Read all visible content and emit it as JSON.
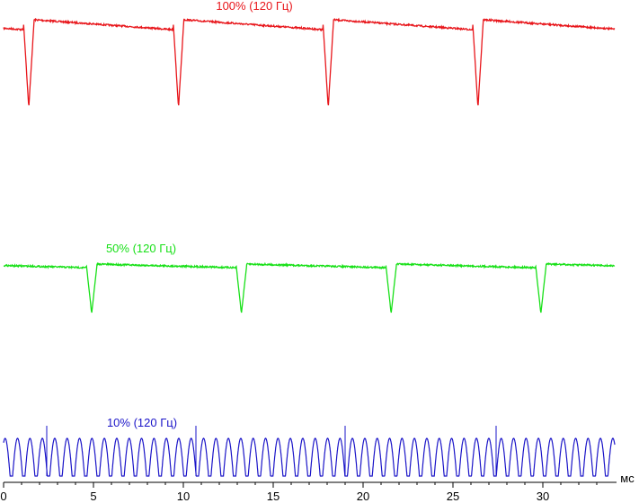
{
  "chart_data": {
    "type": "line",
    "title": "",
    "xlabel": "мс",
    "ylabel": "",
    "xlim": [
      0,
      34
    ],
    "x_ticks": [
      "0",
      "5",
      "10",
      "15",
      "20",
      "25",
      "30"
    ],
    "x_tick_values": [
      0,
      5,
      10,
      15,
      20,
      25,
      30
    ],
    "grid": false,
    "series": [
      {
        "name": "100% (120 Гц)",
        "color": "#e8161b",
        "pulse_period_ms": 8.33,
        "first_pulse_ms": 1.1,
        "dip_width_ms": 0.6,
        "level": 1.0
      },
      {
        "name": "50% (120 Гц)",
        "color": "#18e018",
        "pulse_period_ms": 8.33,
        "first_pulse_ms": 4.6,
        "dip_width_ms": 0.6,
        "level": 0.5
      },
      {
        "name": "10% (120 Гц)",
        "color": "#1a14c8",
        "pulse_period_ms": 0.69,
        "first_pulse_ms": 0.5,
        "level": 0.1
      }
    ]
  }
}
